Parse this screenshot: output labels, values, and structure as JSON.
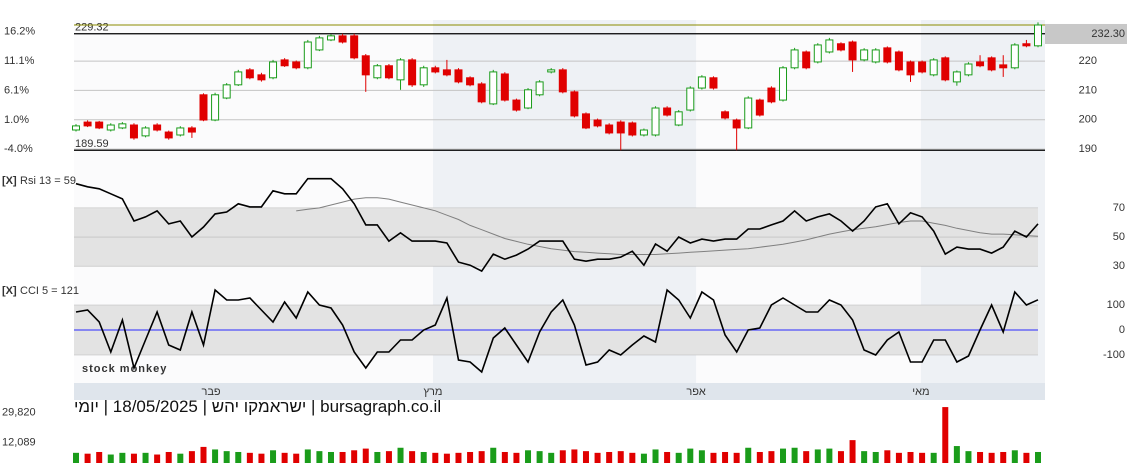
{
  "chart_data": [
    {
      "type": "candlestick",
      "open": [
        196.5,
        199.2,
        199.2,
        196.5,
        197.2,
        198.2,
        194.5,
        198.2,
        195.8,
        194.8,
        197.2,
        208.5,
        199.9,
        207.4,
        211.9,
        217,
        215.3,
        214.3,
        220.4,
        219.7,
        217.7,
        223.8,
        227.2,
        228.6,
        228.6,
        221.8,
        214.3,
        218.4,
        213.6,
        220.4,
        211.9,
        217.7,
        217,
        217,
        214.3,
        212.2,
        205.4,
        215.6,
        206.7,
        204,
        208.5,
        216.3,
        217,
        209.5,
        202,
        199.9,
        198.2,
        199.2,
        198.9,
        194.8,
        194.8,
        204,
        198.2,
        203.3,
        210.8,
        214.3,
        202.7,
        199.9,
        197.2,
        206.7,
        210.8,
        206.7,
        217.7,
        223.1,
        219.7,
        223.1,
        225.9,
        226.5,
        220.4,
        219.7,
        224.5,
        223.1,
        219.7,
        219.7,
        215.3,
        221.1,
        212.9,
        215.3,
        219.7,
        221.1,
        218.7,
        217.7,
        225.9,
        225.2
      ],
      "high": [
        198.5,
        199.8,
        199.6,
        198.8,
        199.2,
        198.8,
        197.8,
        198.8,
        196.3,
        197.8,
        197.8,
        209,
        209.2,
        212.5,
        217,
        217.6,
        216,
        220.4,
        221,
        220.2,
        227.2,
        228.6,
        229.2,
        229.3,
        229.3,
        222.4,
        219,
        219,
        221,
        221,
        218.4,
        218.4,
        220.4,
        217.6,
        214.8,
        212.8,
        217,
        216.2,
        207.2,
        210.8,
        213.5,
        217.6,
        217.6,
        210,
        202.5,
        200.4,
        198.8,
        199.8,
        199.4,
        197,
        204.6,
        204.6,
        203.3,
        211.4,
        215.2,
        214.8,
        203.2,
        200.4,
        208,
        207.2,
        211.4,
        218.3,
        224.5,
        223.6,
        226.1,
        227.9,
        226.4,
        227,
        224.4,
        224.4,
        225,
        223.6,
        220.2,
        220.2,
        221,
        221.6,
        216.8,
        219.6,
        222,
        221.6,
        222,
        226.1,
        227.2,
        233.2
      ],
      "low": [
        196,
        197.5,
        196.8,
        196,
        196.8,
        193.2,
        194,
        196,
        193.2,
        194.3,
        193.8,
        199.5,
        199.5,
        207,
        211.5,
        213.8,
        213,
        213.8,
        218,
        217.2,
        217.2,
        223.4,
        226.8,
        226,
        220.6,
        209.5,
        213.8,
        213.8,
        210.2,
        211.2,
        211.2,
        215.8,
        214.8,
        212.4,
        211.4,
        205.6,
        205,
        206.2,
        202.8,
        203.6,
        208,
        215.8,
        209,
        200.8,
        196.8,
        197.4,
        195,
        189.6,
        194.3,
        194.3,
        194.3,
        201.1,
        197.8,
        202.8,
        210.3,
        210.3,
        200.1,
        189.6,
        196.8,
        201.1,
        205.6,
        206.2,
        217.2,
        217.2,
        219.2,
        222.6,
        223.3,
        216.3,
        219.9,
        219.2,
        219.2,
        216.5,
        212.9,
        215.8,
        214.8,
        213.1,
        211.6,
        214.8,
        217.9,
        216.5,
        214.6,
        217.2,
        224.7,
        224.7
      ],
      "close": [
        197.9,
        197.9,
        197.2,
        198.2,
        198.6,
        193.8,
        197.2,
        196.5,
        193.8,
        197.2,
        195.8,
        199.9,
        208.5,
        211.9,
        216.3,
        214.3,
        213.6,
        219.7,
        218.4,
        217.7,
        226.5,
        227.9,
        228.6,
        226.5,
        221.1,
        215.3,
        218.4,
        214.3,
        220.4,
        211.9,
        217.7,
        216.3,
        215.3,
        212.9,
        211.9,
        206.1,
        216.3,
        206.7,
        203.3,
        210.2,
        212.9,
        217,
        209.5,
        201.3,
        197.2,
        197.9,
        195.5,
        195.5,
        194.8,
        196.5,
        204,
        201.6,
        202.7,
        210.8,
        214.6,
        210.8,
        200.6,
        197.2,
        207.4,
        201.6,
        206.1,
        217.7,
        223.8,
        217.7,
        225.5,
        227.2,
        223.8,
        220.4,
        223.8,
        223.8,
        219.7,
        217,
        215.3,
        216.3,
        220.4,
        213.6,
        216.3,
        219,
        218.4,
        217,
        217.7,
        225.5,
        225.2,
        232.3
      ],
      "up_color": "#1a9c1a",
      "down_color": "#e00000",
      "ylim": [
        189,
        234
      ],
      "yticks": [
        190,
        200,
        210,
        220
      ],
      "y2lim": [
        -4.5,
        18.2
      ],
      "y2ticks": [
        {
          "value": 16.2,
          "label": "16.2%"
        },
        {
          "value": 11.1,
          "label": "11.1%"
        },
        {
          "value": 6.1,
          "label": "6.1%"
        },
        {
          "value": 1.0,
          "label": "1.0%"
        },
        {
          "value": -4.0,
          "label": "-4.0%"
        }
      ],
      "grid": true,
      "levels": [
        {
          "value": 229.32,
          "label": "229.32",
          "color": "#000000"
        },
        {
          "value": 189.59,
          "label": "189.59",
          "color": "#000000"
        }
      ],
      "last_price": {
        "value": 232.3,
        "label": "232.30",
        "color": "#8b8b00"
      },
      "x_labels": [
        {
          "value": 11.65,
          "label": "פבר"
        },
        {
          "value": 30.8,
          "label": "מרץ"
        },
        {
          "value": 53.5,
          "label": "אפר"
        },
        {
          "value": 72.9,
          "label": "מאי"
        }
      ],
      "watermark": "stock monkey"
    },
    {
      "type": "line",
      "toggle": "[X]",
      "title": "Rsi 13 = 59",
      "series": [
        {
          "color": "#000000",
          "values": [
            86.6,
            84.5,
            83.1,
            79.7,
            76.2,
            61,
            63.8,
            67.9,
            59,
            61,
            50,
            56.9,
            65.9,
            67.2,
            72.8,
            70.7,
            70.7,
            81.7,
            79.7,
            79.7,
            90,
            90,
            90,
            83.1,
            72.8,
            58.3,
            58.3,
            47.2,
            52.8,
            47.2,
            47.2,
            47.2,
            45.9,
            32.8,
            30.7,
            26.6,
            38.3,
            34.8,
            37.6,
            41.7,
            47.2,
            47.2,
            47.2,
            34.8,
            33.4,
            34.8,
            34.8,
            36.2,
            40.3,
            30.7,
            45.2,
            40.3,
            50,
            45.9,
            48.6,
            47.2,
            48.6,
            48.6,
            55.5,
            55.5,
            58.3,
            61,
            67.9,
            61,
            63.8,
            65.9,
            61,
            54.1,
            61,
            70.7,
            72.8,
            59,
            66.6,
            63.8,
            54.1,
            38.3,
            43.1,
            41.7,
            41.7,
            39,
            43.1,
            54.1,
            50,
            59
          ]
        },
        {
          "color": "#808080",
          "values": [
            null,
            null,
            null,
            null,
            null,
            null,
            null,
            null,
            null,
            null,
            null,
            null,
            null,
            null,
            null,
            null,
            null,
            null,
            null,
            67.9,
            69,
            70,
            72,
            74,
            76,
            77,
            77,
            76,
            74,
            72,
            70,
            68,
            65,
            62,
            58,
            55,
            52,
            49,
            47,
            45,
            43.5,
            42,
            41,
            40,
            39.5,
            39,
            38.5,
            38,
            38,
            38,
            38,
            38.5,
            39,
            39.5,
            40,
            40.5,
            41,
            41.5,
            42,
            43,
            44,
            45,
            46.5,
            48,
            50,
            52,
            53.5,
            55,
            56,
            57,
            58.5,
            60,
            61,
            61,
            59.5,
            58,
            56,
            54.5,
            53,
            52,
            52,
            51.5,
            51,
            50.5
          ]
        }
      ],
      "ylim": [
        26,
        96
      ],
      "yticks": [
        70,
        50,
        30
      ],
      "band": [
        30,
        70
      ],
      "band_color": "#e3e3e3",
      "grid": true
    },
    {
      "type": "line",
      "toggle": "[X]",
      "title": "CCI 5 = 121",
      "series": [
        {
          "color": "#000000",
          "values": [
            72,
            80,
            32,
            -88,
            40,
            -152,
            -40,
            72,
            -60,
            -80,
            72,
            -60,
            160,
            120,
            120,
            128,
            80,
            32,
            112,
            48,
            152,
            100,
            88,
            20,
            -88,
            -152,
            -88,
            -88,
            -40,
            -40,
            0,
            20,
            128,
            -120,
            -128,
            -168,
            -32,
            8,
            -60,
            -128,
            -8,
            72,
            120,
            20,
            -140,
            -128,
            -80,
            -100,
            -60,
            -24,
            -48,
            160,
            120,
            48,
            152,
            120,
            -20,
            -88,
            0,
            8,
            100,
            128,
            100,
            72,
            72,
            120,
            100,
            40,
            -80,
            -100,
            -40,
            -8,
            -128,
            -128,
            -40,
            -40,
            -128,
            -104,
            0,
            100,
            -8,
            152,
            100,
            121
          ]
        }
      ],
      "ylim": [
        -212,
        200
      ],
      "yticks": [
        100,
        0,
        -100
      ],
      "band": [
        -100,
        100
      ],
      "band_color": "#e3e3e3",
      "grid": true,
      "reference_line": {
        "value": 0,
        "color": "#2a2aff"
      }
    },
    {
      "type": "bar",
      "title": "bursagraph.co.il | ישראמקו יהש | 18/05/2025 | יומי",
      "values": [
        6000,
        5500,
        6500,
        5000,
        6000,
        5500,
        6000,
        5000,
        6500,
        5500,
        7000,
        9500,
        8000,
        7000,
        6500,
        6000,
        5500,
        7500,
        6000,
        5500,
        8000,
        7000,
        6500,
        6500,
        7500,
        8500,
        6500,
        7000,
        9000,
        7000,
        6500,
        6000,
        5500,
        6000,
        6500,
        7000,
        9000,
        6500,
        6000,
        7500,
        7000,
        6000,
        7500,
        8000,
        7000,
        6000,
        6500,
        7000,
        6000,
        5500,
        8000,
        6500,
        6000,
        8500,
        7500,
        6000,
        6500,
        6000,
        9000,
        6500,
        7000,
        8500,
        9000,
        7000,
        8000,
        8500,
        7000,
        13500,
        7000,
        6500,
        7500,
        6000,
        6500,
        6000,
        6000,
        33000,
        10000,
        7000,
        6500,
        6000,
        6500,
        7500,
        6000,
        6500
      ],
      "ylim": [
        0,
        36000
      ],
      "yticks": [
        {
          "value": 29820,
          "label": "29,820"
        },
        {
          "value": 12089,
          "label": "12,089"
        }
      ]
    }
  ]
}
